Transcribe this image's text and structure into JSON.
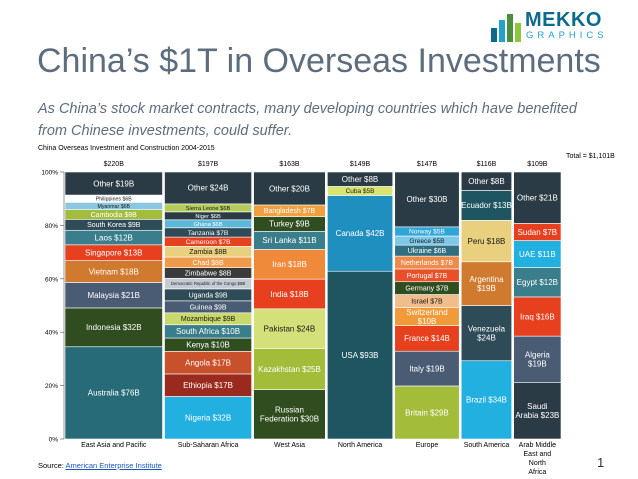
{
  "logo": {
    "line1": "MEKKO",
    "line2": "GRAPHICS",
    "colors": [
      "#0e6a8c",
      "#22a2c9",
      "#4a8e3e",
      "#8dc63f"
    ]
  },
  "title": "China’s $1T in Overseas Investments",
  "subtitle": "As China’s stock market contracts, many developing countries which have benefited from Chinese investments, could suffer.",
  "source": {
    "prefix": "Source: ",
    "link_text": "American Enterprise Institute"
  },
  "page_number": "1",
  "chart_data": {
    "type": "mekko",
    "title": "China Overseas Investment and Construction 2004-2015",
    "total_label": "Total = $1,101B",
    "y_ticks": [
      "0%",
      "20%",
      "40%",
      "60%",
      "80%",
      "100%"
    ],
    "ylim": [
      0,
      100
    ],
    "columns": [
      {
        "name": "East Asia and Pacific",
        "total": 220,
        "total_label": "$220B",
        "segments": [
          {
            "label": "Australia $76B",
            "value": 76,
            "color": "#286b78"
          },
          {
            "label": "Indonesia $32B",
            "value": 32,
            "color": "#304d20"
          },
          {
            "label": "Malaysia $21B",
            "value": 21,
            "color": "#4a5c74"
          },
          {
            "label": "Vietnam $18B",
            "value": 18,
            "color": "#cf7a2e"
          },
          {
            "label": "Singapore $13B",
            "value": 13,
            "color": "#e6401e"
          },
          {
            "label": "Laos $12B",
            "value": 12,
            "color": "#3a7e8c"
          },
          {
            "label": "South Korea $9B",
            "value": 9,
            "color": "#2f4b57"
          },
          {
            "label": "Cambodia $8B",
            "value": 8,
            "color": "#a3bc3a"
          },
          {
            "label": "Myanmar $6B",
            "value": 6,
            "color": "#8bc7e0"
          },
          {
            "label": "Philippines $6B",
            "value": 6,
            "color": "#ffffff"
          },
          {
            "label": "Other $19B",
            "value": 19,
            "color": "#2b3b46"
          }
        ]
      },
      {
        "name": "Sub-Saharan Africa",
        "total": 197,
        "total_label": "$197B",
        "segments": [
          {
            "label": "Nigeria $32B",
            "value": 32,
            "color": "#22b0e0"
          },
          {
            "label": "Ethiopia $17B",
            "value": 17,
            "color": "#9a2a1d"
          },
          {
            "label": "Angola $17B",
            "value": 17,
            "color": "#c8502a"
          },
          {
            "label": "Kenya $10B",
            "value": 10,
            "color": "#304d20"
          },
          {
            "label": "South Africa $10B",
            "value": 10,
            "color": "#3a7e8c"
          },
          {
            "label": "Mozambique $9B",
            "value": 9,
            "color": "#c9d86a"
          },
          {
            "label": "Guinea $9B",
            "value": 9,
            "color": "#4a5c74"
          },
          {
            "label": "Uganda $9B",
            "value": 9,
            "color": "#2f4b57"
          },
          {
            "label": "Democratic Republic of the Congo $8B",
            "value": 8,
            "color": "#c5cbd3"
          },
          {
            "label": "Zimbabwe $8B",
            "value": 8,
            "color": "#3a3a3a"
          },
          {
            "label": "Chad $8B",
            "value": 8,
            "color": "#f09a4a"
          },
          {
            "label": "Zambia $8B",
            "value": 8,
            "color": "#e8d07e"
          },
          {
            "label": "Cameroon $7B",
            "value": 7,
            "color": "#e6401e"
          },
          {
            "label": "Tanzania $7B",
            "value": 7,
            "color": "#2f4b57"
          },
          {
            "label": "Ghana $6B",
            "value": 6,
            "color": "#5cb8d8"
          },
          {
            "label": "Niger $6B",
            "value": 6,
            "color": "#2b3b46"
          },
          {
            "label": "Sierra Leone $6B",
            "value": 6,
            "color": "#b5cc5a"
          },
          {
            "label": "Other $24B",
            "value": 24,
            "color": "#2b3b46"
          }
        ]
      },
      {
        "name": "West Asia",
        "total": 163,
        "total_label": "$163B",
        "segments": [
          {
            "label": "Russian Federation $30B",
            "value": 30,
            "color": "#304d20"
          },
          {
            "label": "Kazakhstan $25B",
            "value": 25,
            "color": "#a3bc3a"
          },
          {
            "label": "Pakistan $24B",
            "value": 24,
            "color": "#d4e07a"
          },
          {
            "label": "India $18B",
            "value": 18,
            "color": "#e6401e"
          },
          {
            "label": "Iran $18B",
            "value": 18,
            "color": "#f08a3a"
          },
          {
            "label": "Sri Lanka $11B",
            "value": 11,
            "color": "#3a7e8c"
          },
          {
            "label": "Turkey $9B",
            "value": 9,
            "color": "#304d20"
          },
          {
            "label": "Bangladesh $7B",
            "value": 7,
            "color": "#f0a040"
          },
          {
            "label": "Other $20B",
            "value": 20,
            "color": "#2b3b46"
          }
        ]
      },
      {
        "name": "North America",
        "total": 149,
        "total_label": "$149B",
        "segments": [
          {
            "label": "USA $93B",
            "value": 93,
            "color": "#1e5560"
          },
          {
            "label": "Canada $42B",
            "value": 42,
            "color": "#1f8fbf"
          },
          {
            "label": "Cuba $5B",
            "value": 5,
            "color": "#d9e36f"
          },
          {
            "label": "Other $8B",
            "value": 8,
            "color": "#2b3b46"
          }
        ]
      },
      {
        "name": "Europe",
        "total": 147,
        "total_label": "$147B",
        "segments": [
          {
            "label": "Britain $29B",
            "value": 29,
            "color": "#a3bc3a"
          },
          {
            "label": "Italy $19B",
            "value": 19,
            "color": "#4a5c74"
          },
          {
            "label": "France $14B",
            "value": 14,
            "color": "#e6401e"
          },
          {
            "label": "Switzerland $10B",
            "value": 10,
            "color": "#f09a3a"
          },
          {
            "label": "Israel $7B",
            "value": 7,
            "color": "#f2bd8c"
          },
          {
            "label": "Germany $7B",
            "value": 7,
            "color": "#304d20"
          },
          {
            "label": "Portugal $7B",
            "value": 7,
            "color": "#e8502a"
          },
          {
            "label": "Netherlands $7B",
            "value": 7,
            "color": "#f08a4a"
          },
          {
            "label": "Ukraine $6B",
            "value": 6,
            "color": "#2f6f80"
          },
          {
            "label": "Greece $5B",
            "value": 5,
            "color": "#7ec8e8"
          },
          {
            "label": "Norway $5B",
            "value": 5,
            "color": "#2fa5d8"
          },
          {
            "label": "Other $30B",
            "value": 30,
            "color": "#2b3b46"
          }
        ]
      },
      {
        "name": "South America",
        "total": 116,
        "total_label": "$116B",
        "segments": [
          {
            "label": "Brazil $34B",
            "value": 34,
            "color": "#22b0e0"
          },
          {
            "label": "Venezuela $24B",
            "value": 24,
            "color": "#2f4b57"
          },
          {
            "label": "Argentina $19B",
            "value": 19,
            "color": "#cf7a2e"
          },
          {
            "label": "Peru $18B",
            "value": 18,
            "color": "#e8d07e"
          },
          {
            "label": "Ecuador $13B",
            "value": 13,
            "color": "#1e5560"
          },
          {
            "label": "Other $8B",
            "value": 8,
            "color": "#2b3b46"
          }
        ]
      },
      {
        "name": "Arab Middle East and North Africa",
        "total": 109,
        "total_label": "$109B",
        "segments": [
          {
            "label": "Saudi Arabia $23B",
            "value": 23,
            "color": "#2b3b46"
          },
          {
            "label": "Algeria $19B",
            "value": 19,
            "color": "#4a5c74"
          },
          {
            "label": "Iraq $16B",
            "value": 16,
            "color": "#e6401e"
          },
          {
            "label": "Egypt $12B",
            "value": 12,
            "color": "#3a7e8c"
          },
          {
            "label": "UAE $11B",
            "value": 11,
            "color": "#22b0e0"
          },
          {
            "label": "Sudan $7B",
            "value": 7,
            "color": "#e6401e"
          },
          {
            "label": "Other $21B",
            "value": 21,
            "color": "#2b3b46"
          }
        ]
      }
    ]
  }
}
